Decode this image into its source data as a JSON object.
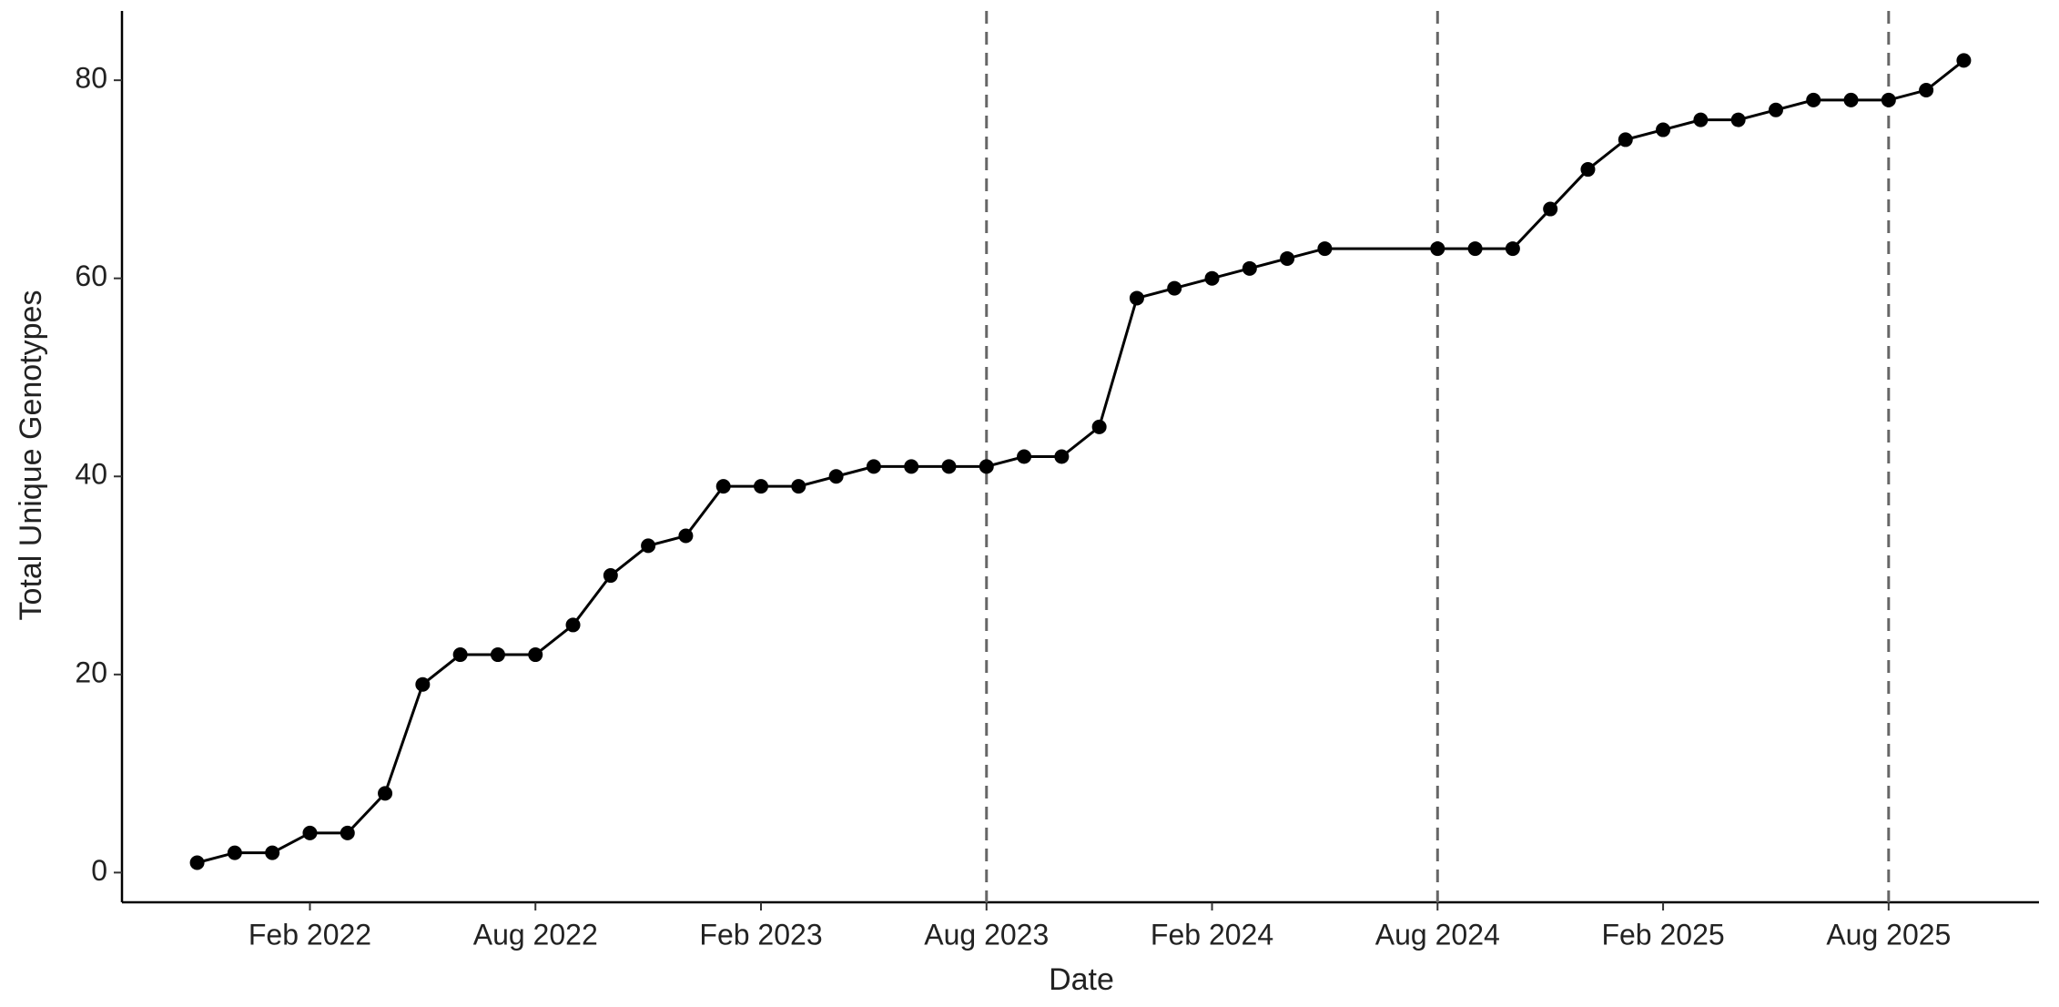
{
  "chart_data": {
    "type": "line",
    "x_label": "Date",
    "y_label": "Total Unique Genotypes",
    "color": "#000000",
    "markers": true,
    "x": [
      "2021-11",
      "2021-12",
      "2022-01",
      "2022-02",
      "2022-03",
      "2022-04",
      "2022-05",
      "2022-06",
      "2022-07",
      "2022-08",
      "2022-09",
      "2022-10",
      "2022-11",
      "2022-12",
      "2023-01",
      "2023-02",
      "2023-03",
      "2023-04",
      "2023-05",
      "2023-06",
      "2023-07",
      "2023-08",
      "2023-09",
      "2023-10",
      "2023-11",
      "2023-12",
      "2024-01",
      "2024-02",
      "2024-03",
      "2024-04",
      "2024-05",
      "2024-08",
      "2024-09",
      "2024-10",
      "2024-11",
      "2024-12",
      "2025-01",
      "2025-02",
      "2025-03",
      "2025-04",
      "2025-05",
      "2025-06",
      "2025-07",
      "2025-08",
      "2025-09",
      "2025-10"
    ],
    "values": [
      1,
      2,
      2,
      4,
      4,
      8,
      19,
      22,
      22,
      22,
      25,
      30,
      33,
      34,
      39,
      39,
      39,
      40,
      41,
      41,
      41,
      41,
      42,
      42,
      45,
      58,
      59,
      60,
      61,
      62,
      63,
      63,
      63,
      63,
      67,
      71,
      74,
      75,
      76,
      76,
      77,
      78,
      78,
      78,
      79,
      82
    ],
    "xlim": [
      "2021-09",
      "2025-12"
    ],
    "xticks": [
      {
        "value": "2022-02",
        "label": "Feb 2022"
      },
      {
        "value": "2022-08",
        "label": "Aug 2022"
      },
      {
        "value": "2023-02",
        "label": "Feb 2023"
      },
      {
        "value": "2023-08",
        "label": "Aug 2023"
      },
      {
        "value": "2024-02",
        "label": "Feb 2024"
      },
      {
        "value": "2024-08",
        "label": "Aug 2024"
      },
      {
        "value": "2025-02",
        "label": "Feb 2025"
      },
      {
        "value": "2025-08",
        "label": "Aug 2025"
      }
    ],
    "ylim": [
      -3,
      87
    ],
    "yticks": [
      0,
      20,
      40,
      60,
      80
    ],
    "vlines": [
      "2023-08",
      "2024-08",
      "2025-08"
    ],
    "vline_color": "#666666",
    "grid": false
  }
}
